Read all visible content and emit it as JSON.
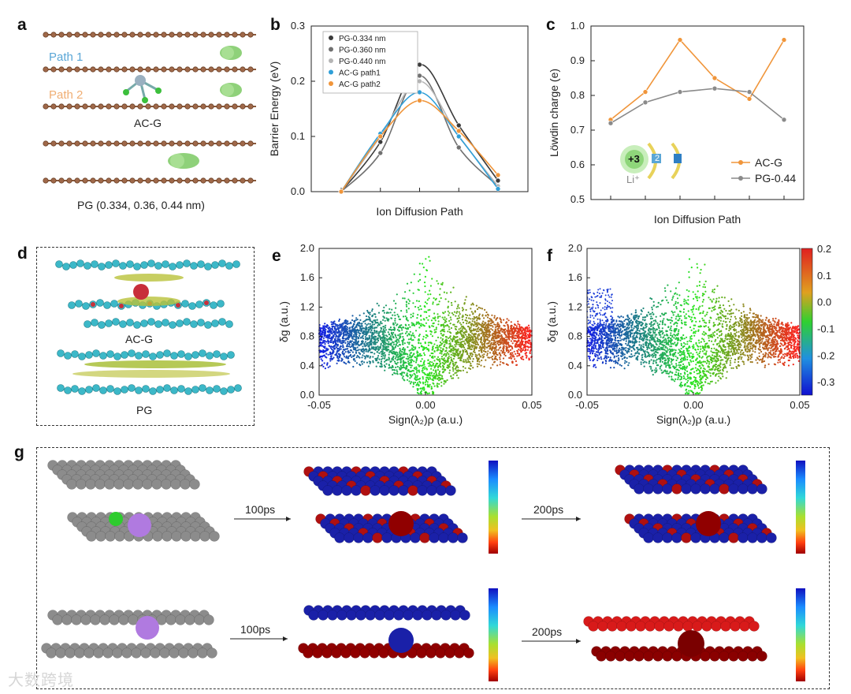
{
  "figure": {
    "panels": [
      "a",
      "b",
      "c",
      "d",
      "e",
      "f",
      "g"
    ]
  },
  "panel_a": {
    "path1": "Path 1",
    "path2": "Path 2",
    "label_acg": "AC-G",
    "caption_pg": "PG (0.334, 0.36, 0.44 nm)"
  },
  "panel_d": {
    "label_acg": "AC-G",
    "label_pg": "PG"
  },
  "panel_c_inset": {
    "ion_label": "+3",
    "number": "2",
    "li_label": "Li⁺"
  },
  "panel_g": {
    "arrow_100": "100ps",
    "arrow_200": "200ps"
  },
  "watermark": "大数跨境",
  "chart_data": [
    {
      "panel": "b",
      "type": "line",
      "title": "",
      "xlabel": "Ion Diffusion Path",
      "ylabel": "Barrier Energy  (eV)",
      "ylim": [
        0,
        0.3
      ],
      "yticks": [
        "0.0",
        "0.1",
        "0.2",
        "0.3"
      ],
      "x": [
        1,
        2,
        3,
        4,
        5
      ],
      "series": [
        {
          "name": "PG-0.334 nm",
          "color": "#3a3a3a",
          "values": [
            0.0,
            0.09,
            0.23,
            0.12,
            0.02
          ]
        },
        {
          "name": "PG-0.360 nm",
          "color": "#707070",
          "values": [
            0.0,
            0.07,
            0.21,
            0.08,
            0.01
          ]
        },
        {
          "name": "PG-0.440 nm",
          "color": "#b5b5b5",
          "values": [
            0.0,
            0.1,
            0.2,
            0.1,
            0.01
          ]
        },
        {
          "name": "AC-G path1",
          "color": "#2f9fd8",
          "values": [
            0.0,
            0.105,
            0.18,
            0.1,
            0.005
          ]
        },
        {
          "name": "AC-G path2",
          "color": "#f0953a",
          "values": [
            0.0,
            0.1,
            0.165,
            0.11,
            0.03
          ]
        }
      ]
    },
    {
      "panel": "c",
      "type": "line",
      "title": "",
      "xlabel": "Ion Diffusion Path",
      "ylabel": "Löwdin charge  (e)",
      "ylim": [
        0.5,
        1.0
      ],
      "yticks": [
        "0.5",
        "0.6",
        "0.7",
        "0.8",
        "0.9",
        "1.0"
      ],
      "x": [
        1,
        2,
        3,
        4,
        5,
        6
      ],
      "series": [
        {
          "name": "AC-G",
          "color": "#f0953a",
          "values": [
            0.73,
            0.81,
            0.96,
            0.85,
            0.79,
            0.96
          ]
        },
        {
          "name": "PG-0.44",
          "color": "#8a8a8a",
          "values": [
            0.72,
            0.78,
            0.81,
            0.82,
            0.81,
            0.73
          ]
        }
      ]
    },
    {
      "panel": "e",
      "type": "scatter",
      "xlabel": "Sign(λ₂)ρ (a.u.)",
      "ylabel": "δg (a.u.)",
      "xlim": [
        -0.05,
        0.05
      ],
      "ylim": [
        0.0,
        2.0
      ],
      "xticks": [
        "-0.05",
        "0.00",
        "0.05"
      ],
      "yticks": [
        "0.0",
        "0.4",
        "0.8",
        "1.2",
        "1.6",
        "2.0"
      ]
    },
    {
      "panel": "f",
      "type": "scatter",
      "xlabel": "Sign(λ₂)ρ (a.u.)",
      "ylabel": "δg (a.u.)",
      "xlim": [
        -0.05,
        0.05
      ],
      "ylim": [
        0.0,
        2.0
      ],
      "xticks": [
        "-0.05",
        "0.00",
        "0.05"
      ],
      "yticks": [
        "0.0",
        "0.4",
        "0.8",
        "1.2",
        "1.6",
        "2.0"
      ],
      "colorbar_ticks": [
        "0.2",
        "0.1",
        "0.0",
        "-0.1",
        "-0.2",
        "-0.3"
      ],
      "colorbar_range": [
        -0.35,
        0.2
      ]
    }
  ]
}
